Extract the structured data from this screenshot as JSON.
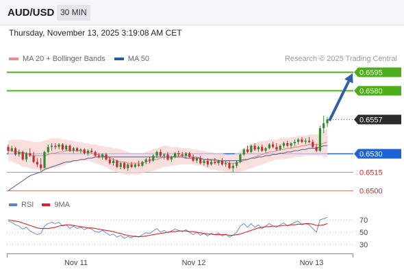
{
  "header": {
    "symbol": "AUD/USD",
    "timeframe": "30 MIN"
  },
  "datetime": "Thursday, November 13, 2025 3:19:08 AM CET",
  "legend": {
    "ma20_label": "MA 20 + Bollinger Bands",
    "ma50_label": "MA 50",
    "ma20_color": "#f08a8a",
    "ma50_color": "#2a5a9a"
  },
  "credit": "Research © 2025 Trading Central",
  "rsi_legend": {
    "rsi_label": "RSI",
    "ma_label": "9MA",
    "rsi_color": "#5a7fd8",
    "ma_color": "#e02020"
  },
  "levels": [
    {
      "value": 0.6595,
      "label": "0.6595",
      "kind": "target"
    },
    {
      "value": 0.658,
      "label": "0.6580",
      "kind": "target"
    },
    {
      "value": 0.6557,
      "label": "0.6557",
      "kind": "current"
    },
    {
      "value": 0.653,
      "label": "0.6530",
      "kind": "pivot"
    },
    {
      "value": 0.6515,
      "label": "0.6515",
      "kind": "support"
    },
    {
      "value": 0.65,
      "label": "0.6500",
      "kind": "support"
    }
  ],
  "chart_data": {
    "type": "candlestick",
    "x_tick_labels": [
      "Nov 11",
      "Nov 12",
      "Nov 13"
    ],
    "ylim": [
      0.6498,
      0.66
    ],
    "candles_ohlc": [
      [
        0.6535,
        0.6537,
        0.653,
        0.6532
      ],
      [
        0.6532,
        0.6536,
        0.6531,
        0.6534
      ],
      [
        0.6534,
        0.6535,
        0.6528,
        0.6529
      ],
      [
        0.6529,
        0.6533,
        0.6527,
        0.6531
      ],
      [
        0.6531,
        0.6532,
        0.6524,
        0.6525
      ],
      [
        0.6525,
        0.6531,
        0.6523,
        0.653
      ],
      [
        0.653,
        0.6534,
        0.6527,
        0.6528
      ],
      [
        0.6528,
        0.6531,
        0.6522,
        0.6523
      ],
      [
        0.6523,
        0.6526,
        0.6519,
        0.6521
      ],
      [
        0.6521,
        0.6526,
        0.6516,
        0.6518
      ],
      [
        0.6518,
        0.6532,
        0.6518,
        0.6531
      ],
      [
        0.6531,
        0.6537,
        0.653,
        0.6535
      ],
      [
        0.6535,
        0.6538,
        0.6532,
        0.6536
      ],
      [
        0.6536,
        0.6538,
        0.6533,
        0.6535
      ],
      [
        0.6535,
        0.6538,
        0.6533,
        0.6537
      ],
      [
        0.6537,
        0.6538,
        0.6532,
        0.6533
      ],
      [
        0.6533,
        0.6537,
        0.6532,
        0.6536
      ],
      [
        0.6536,
        0.6537,
        0.6531,
        0.6532
      ],
      [
        0.6532,
        0.6535,
        0.653,
        0.6534
      ],
      [
        0.6534,
        0.6535,
        0.6531,
        0.6532
      ],
      [
        0.6532,
        0.6534,
        0.653,
        0.6533
      ],
      [
        0.6533,
        0.6534,
        0.6529,
        0.653
      ],
      [
        0.653,
        0.6533,
        0.6528,
        0.6532
      ],
      [
        0.6532,
        0.6534,
        0.653,
        0.6531
      ],
      [
        0.6531,
        0.6532,
        0.6527,
        0.6528
      ],
      [
        0.6528,
        0.653,
        0.6526,
        0.6527
      ],
      [
        0.6527,
        0.653,
        0.6525,
        0.6529
      ],
      [
        0.6529,
        0.653,
        0.6524,
        0.6525
      ],
      [
        0.6525,
        0.6527,
        0.6521,
        0.6522
      ],
      [
        0.6522,
        0.6526,
        0.652,
        0.6524
      ],
      [
        0.6524,
        0.6525,
        0.6518,
        0.6519
      ],
      [
        0.6519,
        0.6523,
        0.6517,
        0.6522
      ],
      [
        0.6522,
        0.6523,
        0.6517,
        0.6518
      ],
      [
        0.6518,
        0.6522,
        0.6516,
        0.6521
      ],
      [
        0.6521,
        0.6523,
        0.6518,
        0.6519
      ],
      [
        0.6519,
        0.6522,
        0.6518,
        0.6521
      ],
      [
        0.6521,
        0.6524,
        0.6519,
        0.652
      ],
      [
        0.652,
        0.6524,
        0.6519,
        0.6523
      ],
      [
        0.6523,
        0.6526,
        0.6521,
        0.6525
      ],
      [
        0.6525,
        0.6527,
        0.6522,
        0.6524
      ],
      [
        0.6524,
        0.6529,
        0.6523,
        0.6528
      ],
      [
        0.6528,
        0.6532,
        0.6526,
        0.6531
      ],
      [
        0.6531,
        0.6533,
        0.6527,
        0.6528
      ],
      [
        0.6528,
        0.653,
        0.6525,
        0.6529
      ],
      [
        0.6529,
        0.6531,
        0.6524,
        0.6525
      ],
      [
        0.6525,
        0.6528,
        0.6523,
        0.6527
      ],
      [
        0.6527,
        0.6531,
        0.6526,
        0.653
      ],
      [
        0.653,
        0.6532,
        0.6527,
        0.6529
      ],
      [
        0.6529,
        0.6531,
        0.6527,
        0.6528
      ],
      [
        0.6528,
        0.6531,
        0.6526,
        0.653
      ],
      [
        0.653,
        0.6531,
        0.6526,
        0.6527
      ],
      [
        0.6527,
        0.6529,
        0.6523,
        0.6524
      ],
      [
        0.6524,
        0.6527,
        0.6522,
        0.6526
      ],
      [
        0.6526,
        0.6528,
        0.6521,
        0.6522
      ],
      [
        0.6522,
        0.6525,
        0.652,
        0.6524
      ],
      [
        0.6524,
        0.6526,
        0.6519,
        0.6521
      ],
      [
        0.6521,
        0.6525,
        0.652,
        0.6523
      ],
      [
        0.6523,
        0.6526,
        0.6521,
        0.6522
      ],
      [
        0.6522,
        0.6525,
        0.652,
        0.6524
      ],
      [
        0.6524,
        0.6526,
        0.652,
        0.6521
      ],
      [
        0.6521,
        0.6524,
        0.6519,
        0.6522
      ],
      [
        0.6522,
        0.6524,
        0.6517,
        0.6518
      ],
      [
        0.6518,
        0.6522,
        0.6515,
        0.652
      ],
      [
        0.652,
        0.6524,
        0.6518,
        0.6523
      ],
      [
        0.6523,
        0.653,
        0.6522,
        0.6529
      ],
      [
        0.6529,
        0.6534,
        0.6528,
        0.6533
      ],
      [
        0.6533,
        0.6536,
        0.653,
        0.6531
      ],
      [
        0.6531,
        0.6537,
        0.653,
        0.6536
      ],
      [
        0.6536,
        0.6538,
        0.6532,
        0.6533
      ],
      [
        0.6533,
        0.6536,
        0.6531,
        0.6535
      ],
      [
        0.6535,
        0.6537,
        0.6531,
        0.6532
      ],
      [
        0.6532,
        0.6535,
        0.653,
        0.6534
      ],
      [
        0.6534,
        0.6538,
        0.6533,
        0.6537
      ],
      [
        0.6537,
        0.6539,
        0.6534,
        0.6535
      ],
      [
        0.6535,
        0.6538,
        0.6532,
        0.6533
      ],
      [
        0.6533,
        0.6537,
        0.6532,
        0.6536
      ],
      [
        0.6536,
        0.6539,
        0.6534,
        0.6538
      ],
      [
        0.6538,
        0.654,
        0.6535,
        0.6536
      ],
      [
        0.6536,
        0.6539,
        0.6534,
        0.6538
      ],
      [
        0.6538,
        0.6541,
        0.6536,
        0.6539
      ],
      [
        0.6539,
        0.6542,
        0.6537,
        0.6541
      ],
      [
        0.6541,
        0.6543,
        0.6538,
        0.6539
      ],
      [
        0.6539,
        0.6542,
        0.6537,
        0.654
      ],
      [
        0.654,
        0.6543,
        0.6538,
        0.6539
      ],
      [
        0.6539,
        0.6541,
        0.6534,
        0.6535
      ],
      [
        0.6535,
        0.6537,
        0.6531,
        0.6532
      ],
      [
        0.6532,
        0.6552,
        0.6531,
        0.655
      ],
      [
        0.655,
        0.656,
        0.6546,
        0.6554
      ],
      [
        0.6554,
        0.6559,
        0.6551,
        0.6557
      ]
    ],
    "ma20_values": [
      0.6532,
      0.6532,
      0.6531,
      0.6531,
      0.653,
      0.653,
      0.6529,
      0.6528,
      0.6528,
      0.6528,
      0.6528,
      0.6529,
      0.653,
      0.653,
      0.6531,
      0.6531,
      0.6532,
      0.6532,
      0.6532,
      0.6532,
      0.6532,
      0.6531,
      0.6531,
      0.653,
      0.6529,
      0.6529,
      0.6528,
      0.6527,
      0.6526,
      0.6525,
      0.6524,
      0.6523,
      0.6523,
      0.6522,
      0.6522,
      0.6522,
      0.6522,
      0.6522,
      0.6523,
      0.6524,
      0.6525,
      0.6525,
      0.6526,
      0.6527,
      0.6527,
      0.6527,
      0.6528,
      0.6528,
      0.6528,
      0.6528,
      0.6528,
      0.6527,
      0.6527,
      0.6526,
      0.6525,
      0.6525,
      0.6524,
      0.6524,
      0.6523,
      0.6523,
      0.6523,
      0.6522,
      0.6522,
      0.6522,
      0.6523,
      0.6524,
      0.6525,
      0.6526,
      0.6527,
      0.6528,
      0.6529,
      0.653,
      0.6531,
      0.6531,
      0.6532,
      0.6533,
      0.6533,
      0.6534,
      0.6534,
      0.6535,
      0.6535,
      0.6536,
      0.6536,
      0.6537,
      0.6537,
      0.6537,
      0.6537,
      0.6538,
      0.6539
    ],
    "bollinger_upper": [
      0.654,
      0.6541,
      0.6541,
      0.6541,
      0.6541,
      0.654,
      0.654,
      0.6539,
      0.6539,
      0.6539,
      0.654,
      0.6541,
      0.6542,
      0.6542,
      0.6542,
      0.6541,
      0.6541,
      0.654,
      0.654,
      0.6539,
      0.6539,
      0.6538,
      0.6538,
      0.6537,
      0.6537,
      0.6536,
      0.6536,
      0.6535,
      0.6535,
      0.6534,
      0.6534,
      0.6533,
      0.6532,
      0.6531,
      0.653,
      0.653,
      0.653,
      0.653,
      0.6531,
      0.6532,
      0.6533,
      0.6534,
      0.6535,
      0.6536,
      0.6536,
      0.6535,
      0.6535,
      0.6535,
      0.6534,
      0.6534,
      0.6534,
      0.6533,
      0.6533,
      0.6532,
      0.6532,
      0.6531,
      0.6531,
      0.653,
      0.653,
      0.653,
      0.6529,
      0.6529,
      0.6529,
      0.653,
      0.6532,
      0.6534,
      0.6536,
      0.6537,
      0.6538,
      0.6539,
      0.654,
      0.654,
      0.6541,
      0.6541,
      0.6541,
      0.6542,
      0.6542,
      0.6542,
      0.6543,
      0.6543,
      0.6544,
      0.6544,
      0.6544,
      0.6545,
      0.6545,
      0.6545,
      0.6546,
      0.6548,
      0.655
    ],
    "bollinger_lower": [
      0.6524,
      0.6523,
      0.6522,
      0.6521,
      0.6519,
      0.6519,
      0.6518,
      0.6517,
      0.6517,
      0.6516,
      0.6516,
      0.6517,
      0.6518,
      0.6518,
      0.6519,
      0.652,
      0.6521,
      0.6522,
      0.6523,
      0.6524,
      0.6524,
      0.6524,
      0.6524,
      0.6523,
      0.6522,
      0.6521,
      0.652,
      0.6519,
      0.6517,
      0.6516,
      0.6515,
      0.6514,
      0.6513,
      0.6513,
      0.6513,
      0.6513,
      0.6513,
      0.6514,
      0.6515,
      0.6515,
      0.6516,
      0.6517,
      0.6518,
      0.6519,
      0.6519,
      0.652,
      0.652,
      0.6521,
      0.6521,
      0.6521,
      0.6521,
      0.6521,
      0.652,
      0.652,
      0.6519,
      0.6518,
      0.6517,
      0.6517,
      0.6516,
      0.6516,
      0.6515,
      0.6515,
      0.6515,
      0.6515,
      0.6515,
      0.6516,
      0.6517,
      0.6518,
      0.6519,
      0.652,
      0.6521,
      0.6522,
      0.6523,
      0.6524,
      0.6525,
      0.6525,
      0.6525,
      0.6526,
      0.6526,
      0.6527,
      0.6527,
      0.6527,
      0.6528,
      0.6528,
      0.6528,
      0.6528,
      0.6528,
      0.6527,
      0.6527
    ],
    "ma50_values": [
      0.65,
      0.6502,
      0.6504,
      0.6506,
      0.6508,
      0.651,
      0.6512,
      0.6513,
      0.6514,
      0.6515,
      0.6517,
      0.6518,
      0.6519,
      0.652,
      0.6521,
      0.6522,
      0.6523,
      0.6523,
      0.6524,
      0.6524,
      0.6525,
      0.6525,
      0.6526,
      0.6526,
      0.6527,
      0.6527,
      0.6527,
      0.6527,
      0.6527,
      0.6527,
      0.6527,
      0.6527,
      0.6527,
      0.6527,
      0.6527,
      0.6527,
      0.6527,
      0.6527,
      0.6527,
      0.6527,
      0.6527,
      0.6527,
      0.6527,
      0.6527,
      0.6527,
      0.6527,
      0.6527,
      0.6527,
      0.6527,
      0.6526,
      0.6526,
      0.6526,
      0.6526,
      0.6526,
      0.6525,
      0.6525,
      0.6525,
      0.6525,
      0.6524,
      0.6524,
      0.6524,
      0.6524,
      0.6524,
      0.6524,
      0.6524,
      0.6525,
      0.6525,
      0.6526,
      0.6526,
      0.6527,
      0.6527,
      0.6528,
      0.6528,
      0.6529,
      0.6529,
      0.653,
      0.653,
      0.6531,
      0.6531,
      0.6532,
      0.6532,
      0.6533,
      0.6533,
      0.6534,
      0.6534,
      0.6534,
      0.6535,
      0.6536,
      0.6536
    ],
    "forecast_arrow": {
      "from": 0.6556,
      "to": 0.6594
    },
    "rsi": {
      "ylim": [
        20,
        80
      ],
      "tick_labels": [
        "70",
        "50",
        "30"
      ],
      "ticks": [
        70,
        50,
        30
      ],
      "rsi_values": [
        68,
        66,
        62,
        60,
        55,
        58,
        52,
        49,
        46,
        48,
        60,
        64,
        66,
        64,
        66,
        60,
        62,
        56,
        60,
        56,
        58,
        54,
        57,
        55,
        51,
        50,
        53,
        49,
        45,
        47,
        42,
        45,
        40,
        43,
        41,
        44,
        42,
        46,
        49,
        48,
        52,
        56,
        50,
        53,
        49,
        52,
        55,
        53,
        51,
        54,
        50,
        46,
        50,
        45,
        48,
        44,
        48,
        46,
        49,
        44,
        47,
        42,
        45,
        50,
        60,
        64,
        58,
        64,
        58,
        62,
        56,
        60,
        64,
        60,
        58,
        62,
        65,
        60,
        63,
        66,
        68,
        62,
        64,
        62,
        56,
        50,
        70,
        72,
        74
      ],
      "ma9_values": [
        70,
        69,
        68,
        67,
        65,
        63,
        61,
        59,
        57,
        56,
        56,
        56,
        57,
        58,
        60,
        61,
        62,
        62,
        61,
        60,
        59,
        58,
        57,
        57,
        56,
        55,
        54,
        53,
        52,
        51,
        49,
        48,
        46,
        45,
        44,
        43,
        43,
        43,
        44,
        45,
        46,
        47,
        48,
        49,
        50,
        51,
        51,
        52,
        52,
        52,
        51,
        51,
        50,
        49,
        48,
        47,
        47,
        46,
        46,
        46,
        46,
        45,
        45,
        46,
        47,
        49,
        51,
        53,
        55,
        57,
        58,
        59,
        59,
        60,
        60,
        60,
        61,
        61,
        62,
        62,
        63,
        63,
        64,
        64,
        63,
        61,
        61,
        62,
        64
      ]
    }
  }
}
